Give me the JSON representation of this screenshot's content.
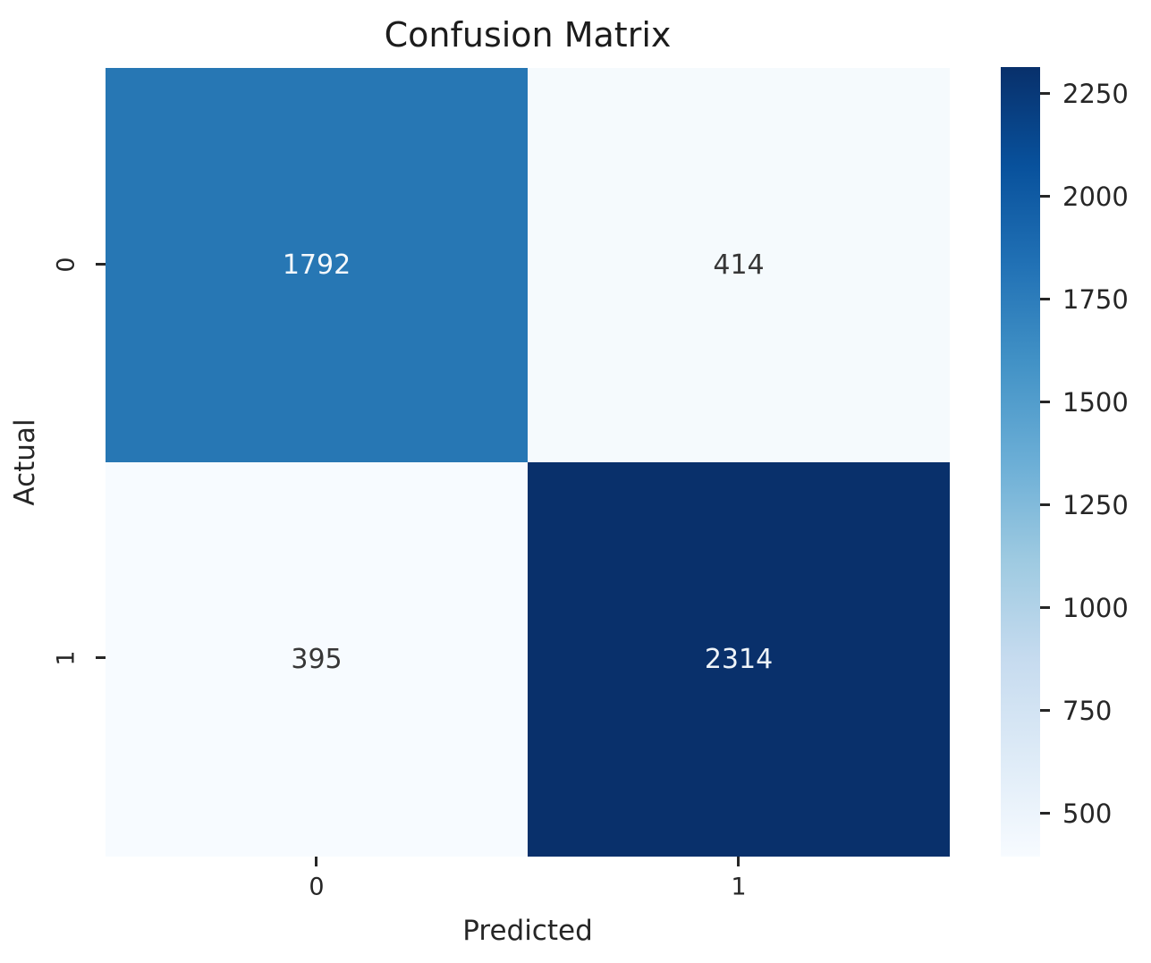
{
  "chart_data": {
    "type": "heatmap",
    "title": "Confusion Matrix",
    "xlabel": "Predicted",
    "ylabel": "Actual",
    "x_tick_labels": [
      "0",
      "1"
    ],
    "y_tick_labels": [
      "0",
      "1"
    ],
    "matrix": [
      [
        1792,
        414
      ],
      [
        395,
        2314
      ]
    ],
    "vmin": 395,
    "vmax": 2314,
    "colormap": "Blues",
    "colorbar_ticks": [
      "2250",
      "2000",
      "1750",
      "1500",
      "1250",
      "1000",
      "750",
      "500"
    ],
    "legend_position": "right-colorbar",
    "grid": false
  },
  "cells": [
    {
      "value": "1792",
      "bg": "#2777b4",
      "fg": "#f4f8fb"
    },
    {
      "value": "414",
      "bg": "#f5fafd",
      "fg": "#373737"
    },
    {
      "value": "395",
      "bg": "#f7fbff",
      "fg": "#373737"
    },
    {
      "value": "2314",
      "bg": "#09306b",
      "fg": "#eff4f9"
    }
  ],
  "colors": {
    "title_text": "#1c1c1c",
    "axis_text": "#262626",
    "cmap_low": "#f7fbff",
    "cmap_high": "#08306b"
  }
}
